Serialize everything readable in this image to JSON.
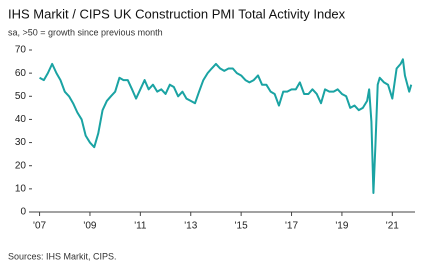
{
  "chart_data": {
    "type": "line",
    "title": "IHS Markit / CIPS UK Construction PMI Total Activity Index",
    "subtitle": "sa, >50 = growth since previous month",
    "source": "Sources: IHS Markit, CIPS.",
    "color": "#1aa3a3",
    "x": [
      2007.0,
      2007.17,
      2007.33,
      2007.5,
      2007.67,
      2007.83,
      2008.0,
      2008.17,
      2008.33,
      2008.5,
      2008.67,
      2008.83,
      2009.0,
      2009.17,
      2009.33,
      2009.5,
      2009.67,
      2009.83,
      2010.0,
      2010.17,
      2010.33,
      2010.5,
      2010.67,
      2010.83,
      2011.0,
      2011.17,
      2011.33,
      2011.5,
      2011.67,
      2011.83,
      2012.0,
      2012.17,
      2012.33,
      2012.5,
      2012.67,
      2012.83,
      2013.0,
      2013.17,
      2013.33,
      2013.5,
      2013.67,
      2013.83,
      2014.0,
      2014.17,
      2014.33,
      2014.5,
      2014.67,
      2014.83,
      2015.0,
      2015.17,
      2015.33,
      2015.5,
      2015.67,
      2015.83,
      2016.0,
      2016.17,
      2016.33,
      2016.5,
      2016.67,
      2016.83,
      2017.0,
      2017.17,
      2017.33,
      2017.5,
      2017.67,
      2017.83,
      2018.0,
      2018.17,
      2018.33,
      2018.5,
      2018.67,
      2018.83,
      2019.0,
      2019.17,
      2019.33,
      2019.5,
      2019.67,
      2019.83,
      2020.0,
      2020.08,
      2020.17,
      2020.25,
      2020.33,
      2020.42,
      2020.5,
      2020.67,
      2020.83,
      2021.0,
      2021.17,
      2021.33,
      2021.42,
      2021.5,
      2021.67,
      2021.75
    ],
    "values": [
      58,
      57,
      60,
      64,
      60,
      57,
      52,
      50,
      47,
      43,
      40,
      33,
      30,
      28,
      34,
      44,
      48,
      50,
      52,
      58,
      57,
      57,
      53,
      49,
      53,
      57,
      53,
      55,
      52,
      53,
      51,
      55,
      54,
      50,
      52,
      49,
      48,
      47,
      52,
      57,
      60,
      62,
      64,
      62,
      61,
      62,
      62,
      60,
      59,
      57,
      56,
      57,
      59,
      55,
      55,
      52,
      51,
      46,
      52,
      52,
      53,
      53,
      56,
      51,
      51,
      53,
      51,
      47,
      53,
      52,
      52,
      53,
      51,
      50,
      45,
      46,
      44,
      45,
      48,
      53,
      39,
      8.2,
      29,
      55,
      58,
      56,
      55,
      49,
      62,
      64,
      66,
      59,
      52,
      55
    ],
    "xlim": [
      2006.7,
      2021.9
    ],
    "xticks": [
      {
        "value": 2007,
        "label": "'07"
      },
      {
        "value": 2009,
        "label": "'09"
      },
      {
        "value": 2011,
        "label": "'11"
      },
      {
        "value": 2013,
        "label": "'13"
      },
      {
        "value": 2015,
        "label": "'15"
      },
      {
        "value": 2017,
        "label": "'17"
      },
      {
        "value": 2019,
        "label": "'19"
      },
      {
        "value": 2021,
        "label": "'21"
      }
    ],
    "ylim": [
      0,
      70
    ],
    "yticks": [
      0,
      10,
      20,
      30,
      40,
      50,
      60,
      70
    ]
  }
}
